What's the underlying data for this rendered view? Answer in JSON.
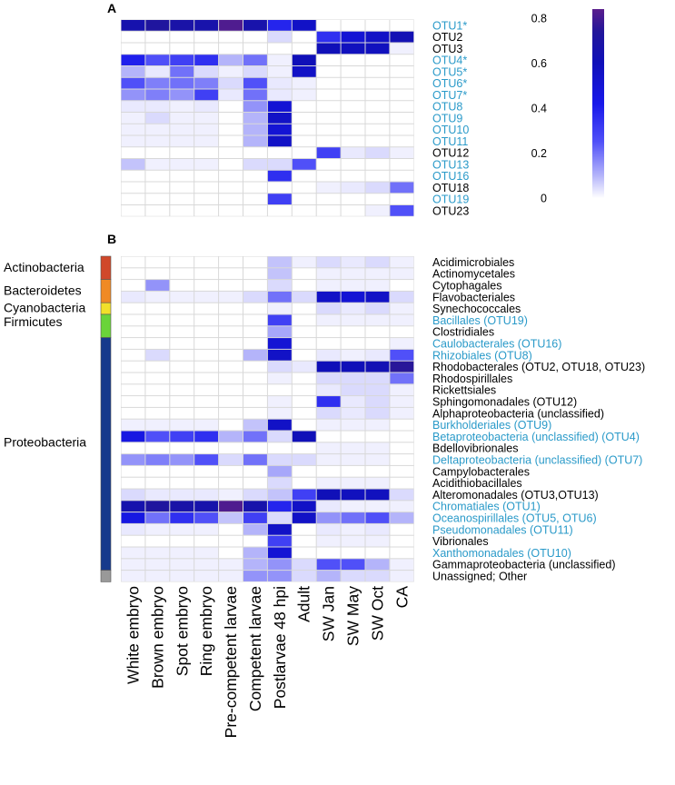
{
  "chart_data": [
    {
      "type": "heatmap",
      "panel_label": "A",
      "columns": [
        "White embryo",
        "Brown embryo",
        "Spot embryo",
        "Ring embryo",
        "Pre-competent larvae",
        "Competent larvae",
        "Postlarvae 48 hpi",
        "Adult",
        "SW Jan",
        "SW May",
        "SW Oct",
        "CA"
      ],
      "rows": [
        {
          "label": "OTU1*",
          "highlight": true
        },
        {
          "label": "OTU2",
          "highlight": false
        },
        {
          "label": "OTU3",
          "highlight": false
        },
        {
          "label": "OTU4*",
          "highlight": true
        },
        {
          "label": "OTU5*",
          "highlight": true
        },
        {
          "label": "OTU6*",
          "highlight": true
        },
        {
          "label": "OTU7*",
          "highlight": true
        },
        {
          "label": "OTU8",
          "highlight": true
        },
        {
          "label": "OTU9",
          "highlight": true
        },
        {
          "label": "OTU10",
          "highlight": true
        },
        {
          "label": "OTU11",
          "highlight": true
        },
        {
          "label": "OTU12",
          "highlight": false
        },
        {
          "label": "OTU13",
          "highlight": true
        },
        {
          "label": "OTU16",
          "highlight": true
        },
        {
          "label": "OTU18",
          "highlight": false
        },
        {
          "label": "OTU19",
          "highlight": true
        },
        {
          "label": "OTU23",
          "highlight": false
        }
      ],
      "values": [
        [
          0.65,
          0.72,
          0.68,
          0.66,
          0.82,
          0.66,
          0.38,
          0.55,
          0,
          0,
          0,
          0
        ],
        [
          0,
          0,
          0,
          0,
          0,
          0,
          0.05,
          0,
          0.35,
          0.5,
          0.55,
          0.62
        ],
        [
          0,
          0,
          0,
          0,
          0,
          0,
          0,
          0,
          0.6,
          0.58,
          0.58,
          0.02
        ],
        [
          0.4,
          0.25,
          0.3,
          0.35,
          0.1,
          0.2,
          0.02,
          0.6,
          0,
          0,
          0,
          0
        ],
        [
          0.1,
          0.03,
          0.2,
          0.05,
          0.02,
          0.05,
          0.02,
          0.55,
          0,
          0,
          0,
          0
        ],
        [
          0.25,
          0.18,
          0.2,
          0.18,
          0.05,
          0.25,
          0.03,
          0.02,
          0,
          0,
          0,
          0
        ],
        [
          0.15,
          0.18,
          0.15,
          0.3,
          0.03,
          0.2,
          0.03,
          0.02,
          0,
          0,
          0,
          0
        ],
        [
          0.03,
          0.03,
          0.02,
          0.03,
          0,
          0.15,
          0.5,
          0,
          0,
          0,
          0,
          0
        ],
        [
          0.02,
          0.05,
          0.02,
          0.02,
          0,
          0.1,
          0.55,
          0,
          0,
          0,
          0,
          0
        ],
        [
          0.02,
          0.02,
          0.02,
          0.02,
          0,
          0.1,
          0.5,
          0,
          0,
          0,
          0,
          0
        ],
        [
          0.02,
          0.02,
          0.02,
          0.02,
          0,
          0.1,
          0.55,
          0,
          0,
          0,
          0,
          0
        ],
        [
          0,
          0,
          0,
          0,
          0,
          0,
          0,
          0,
          0.3,
          0.03,
          0.05,
          0.02
        ],
        [
          0.08,
          0.02,
          0.02,
          0.02,
          0,
          0.05,
          0.05,
          0.25,
          0,
          0,
          0,
          0
        ],
        [
          0,
          0,
          0,
          0,
          0,
          0,
          0.35,
          0,
          0,
          0,
          0,
          0
        ],
        [
          0,
          0,
          0,
          0,
          0,
          0,
          0,
          0,
          0.02,
          0.03,
          0.05,
          0.2
        ],
        [
          0,
          0,
          0,
          0,
          0,
          0,
          0.3,
          0,
          0,
          0,
          0,
          0
        ],
        [
          0,
          0,
          0,
          0,
          0,
          0,
          0,
          0,
          0,
          0,
          0.02,
          0.25
        ]
      ]
    },
    {
      "type": "heatmap",
      "panel_label": "B",
      "columns": [
        "White embryo",
        "Brown embryo",
        "Spot embryo",
        "Ring embryo",
        "Pre-competent larvae",
        "Competent larvae",
        "Postlarvae 48 hpi",
        "Adult",
        "SW Jan",
        "SW May",
        "SW Oct",
        "CA"
      ],
      "rows": [
        {
          "label": "Acidimicrobiales",
          "highlight": false
        },
        {
          "label": "Actinomycetales",
          "highlight": false
        },
        {
          "label": "Cytophagales",
          "highlight": false
        },
        {
          "label": "Flavobacteriales",
          "highlight": false
        },
        {
          "label": "Synechococcales",
          "highlight": false
        },
        {
          "label": "Bacillales (OTU19)",
          "highlight": true
        },
        {
          "label": "Clostridiales",
          "highlight": false
        },
        {
          "label": "Caulobacterales (OTU16)",
          "highlight": true
        },
        {
          "label": "Rhizobiales (OTU8)",
          "highlight": true
        },
        {
          "label": "Rhodobacterales (OTU2, OTU18, OTU23)",
          "highlight": false
        },
        {
          "label": "Rhodospirillales",
          "highlight": false
        },
        {
          "label": "Rickettsiales",
          "highlight": false
        },
        {
          "label": "Sphingomonadales (OTU12)",
          "highlight": false
        },
        {
          "label": "Alphaproteobacteria (unclassified)",
          "highlight": false
        },
        {
          "label": "Burkholderiales (OTU9)",
          "highlight": true
        },
        {
          "label": "Betaproteobacteria (unclassified) (OTU4)",
          "highlight": true
        },
        {
          "label": "Bdellovibrionales",
          "highlight": false
        },
        {
          "label": "Deltaproteobacteria (unclassified) (OTU7)",
          "highlight": true
        },
        {
          "label": "Campylobacterales",
          "highlight": false
        },
        {
          "label": "Acidithiobacillales",
          "highlight": false
        },
        {
          "label": "Alteromonadales (OTU3,OTU13)",
          "highlight": false
        },
        {
          "label": "Chromatiales (OTU1)",
          "highlight": true
        },
        {
          "label": "Oceanospirillales (OTU5, OTU6)",
          "highlight": true
        },
        {
          "label": "Pseudomonadales (OTU11)",
          "highlight": true
        },
        {
          "label": "Vibrionales",
          "highlight": false
        },
        {
          "label": "Xanthomonadales (OTU10)",
          "highlight": true
        },
        {
          "label": "Gammaproteobacteria (unclassified)",
          "highlight": false
        },
        {
          "label": "Unassigned; Other",
          "highlight": false
        }
      ],
      "values": [
        [
          0,
          0,
          0,
          0,
          0,
          0,
          0.08,
          0.02,
          0.05,
          0.03,
          0.05,
          0.02
        ],
        [
          0,
          0,
          0,
          0,
          0,
          0,
          0.08,
          0,
          0.02,
          0.02,
          0.02,
          0.02
        ],
        [
          0,
          0.15,
          0,
          0,
          0,
          0,
          0.05,
          0,
          0.02,
          0.02,
          0.02,
          0
        ],
        [
          0.03,
          0.02,
          0.02,
          0.02,
          0.02,
          0.05,
          0.2,
          0.05,
          0.55,
          0.5,
          0.55,
          0.05
        ],
        [
          0,
          0,
          0,
          0,
          0,
          0,
          0.02,
          0,
          0.05,
          0.03,
          0.05,
          0.02
        ],
        [
          0,
          0,
          0,
          0,
          0,
          0,
          0.3,
          0,
          0.02,
          0.02,
          0.02,
          0.02
        ],
        [
          0,
          0,
          0,
          0,
          0,
          0,
          0.12,
          0,
          0,
          0,
          0,
          0
        ],
        [
          0,
          0,
          0,
          0,
          0,
          0,
          0.5,
          0,
          0,
          0,
          0,
          0.02
        ],
        [
          0,
          0.05,
          0,
          0,
          0,
          0.1,
          0.55,
          0,
          0.03,
          0.02,
          0.03,
          0.25
        ],
        [
          0,
          0,
          0,
          0,
          0,
          0,
          0.05,
          0.03,
          0.6,
          0.6,
          0.62,
          0.75
        ],
        [
          0,
          0,
          0,
          0,
          0,
          0,
          0.02,
          0,
          0.05,
          0.05,
          0.05,
          0.2
        ],
        [
          0,
          0,
          0,
          0,
          0,
          0,
          0,
          0,
          0.03,
          0.05,
          0.05,
          0.02
        ],
        [
          0,
          0,
          0,
          0,
          0,
          0,
          0.02,
          0,
          0.35,
          0.03,
          0.05,
          0.02
        ],
        [
          0,
          0,
          0,
          0,
          0,
          0,
          0.02,
          0,
          0.05,
          0.03,
          0.05,
          0.02
        ],
        [
          0.02,
          0.02,
          0.02,
          0.02,
          0,
          0.08,
          0.55,
          0,
          0.02,
          0.02,
          0.02,
          0
        ],
        [
          0.45,
          0.25,
          0.3,
          0.35,
          0.1,
          0.2,
          0.05,
          0.6,
          0,
          0,
          0,
          0
        ],
        [
          0,
          0,
          0,
          0,
          0,
          0,
          0,
          0,
          0.02,
          0.02,
          0.02,
          0
        ],
        [
          0.15,
          0.18,
          0.15,
          0.25,
          0.05,
          0.2,
          0.05,
          0.05,
          0.02,
          0.02,
          0.02,
          0
        ],
        [
          0,
          0,
          0,
          0,
          0,
          0,
          0.12,
          0,
          0,
          0,
          0,
          0
        ],
        [
          0,
          0,
          0,
          0,
          0,
          0,
          0.05,
          0,
          0.02,
          0.02,
          0.02,
          0
        ],
        [
          0.05,
          0.03,
          0.03,
          0.03,
          0.02,
          0.05,
          0.08,
          0.3,
          0.6,
          0.58,
          0.58,
          0.05
        ],
        [
          0.65,
          0.72,
          0.68,
          0.66,
          0.82,
          0.66,
          0.38,
          0.55,
          0.03,
          0.02,
          0.02,
          0.02
        ],
        [
          0.45,
          0.2,
          0.35,
          0.25,
          0.08,
          0.3,
          0.05,
          0.55,
          0.15,
          0.2,
          0.25,
          0.1
        ],
        [
          0.03,
          0.02,
          0.02,
          0.02,
          0,
          0.1,
          0.55,
          0,
          0.03,
          0.02,
          0.03,
          0
        ],
        [
          0,
          0,
          0,
          0,
          0,
          0,
          0.3,
          0,
          0.02,
          0.02,
          0.02,
          0
        ],
        [
          0.02,
          0.02,
          0.02,
          0.02,
          0,
          0.1,
          0.5,
          0,
          0,
          0,
          0,
          0
        ],
        [
          0.02,
          0.02,
          0.02,
          0.02,
          0.02,
          0.1,
          0.15,
          0.05,
          0.25,
          0.25,
          0.1,
          0.02
        ],
        [
          0.02,
          0.02,
          0.02,
          0.02,
          0.02,
          0.15,
          0.15,
          0.05,
          0.1,
          0.05,
          0.05,
          0.02
        ]
      ],
      "phylum_bar": [
        {
          "label": "Actinobacteria",
          "color": "#d0482a",
          "rows": 2
        },
        {
          "label": "Bacteroidetes",
          "color": "#f08a24",
          "rows": 2
        },
        {
          "label": "Cyanobacteria",
          "color": "#f2e02a",
          "rows": 1
        },
        {
          "label": "Firmicutes",
          "color": "#6ad43a",
          "rows": 2
        },
        {
          "label": "Proteobacteria",
          "color": "#163a8c",
          "rows": 20
        },
        {
          "label": "",
          "color": "#999999",
          "rows": 1
        }
      ]
    }
  ],
  "colorbar": {
    "ticks": [
      0,
      0.2,
      0.4,
      0.6,
      0.8
    ],
    "tick_labels": [
      "0",
      "0.2",
      "0.4",
      "0.6",
      "0.8"
    ],
    "range": [
      0,
      0.84
    ]
  },
  "colors": {
    "highlight_text": "#2a9ac9",
    "normal_text": "#000000",
    "grid": "#d8d8d8"
  }
}
